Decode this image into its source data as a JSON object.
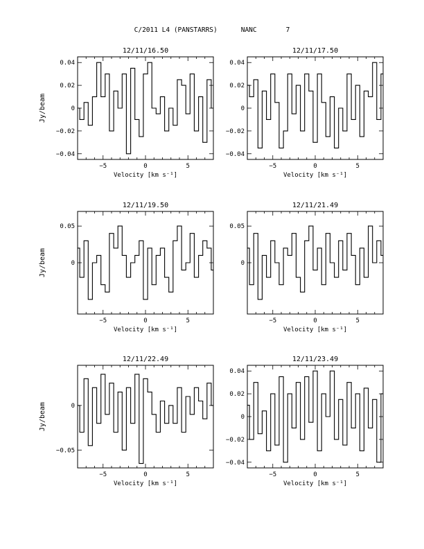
{
  "header": {
    "object": "C/2011 L4 (PANSTARRS)",
    "station": "NANC",
    "number": "7"
  },
  "chart_data": [
    {
      "type": "line",
      "title": "12/11/16.50",
      "xlabel": "Velocity [km s⁻¹]",
      "ylabel": "Jy/beam",
      "xlim": [
        -8,
        8
      ],
      "ylim": [
        -0.045,
        0.045
      ],
      "xticks": [
        -5,
        0,
        5
      ],
      "yticks": [
        -0.04,
        -0.02,
        0,
        0.02,
        0.04
      ],
      "ytick_labels": [
        "−0.04",
        "−0.02",
        "0",
        "0.02",
        "0.04"
      ],
      "x": [
        -8,
        -7.5,
        -7,
        -6.5,
        -6,
        -5.5,
        -5,
        -4.5,
        -4,
        -3.5,
        -3,
        -2.5,
        -2,
        -1.5,
        -1,
        -0.5,
        0,
        0.5,
        1,
        1.5,
        2,
        2.5,
        3,
        3.5,
        4,
        4.5,
        5,
        5.5,
        6,
        6.5,
        7,
        7.5,
        8
      ],
      "values": [
        0.0,
        -0.01,
        0.005,
        -0.015,
        0.01,
        0.04,
        0.01,
        0.03,
        -0.02,
        0.015,
        0.0,
        0.03,
        -0.04,
        0.035,
        -0.01,
        -0.025,
        0.03,
        0.04,
        0.0,
        -0.005,
        0.01,
        -0.02,
        0.0,
        -0.015,
        0.025,
        0.02,
        -0.005,
        0.03,
        -0.02,
        0.01,
        -0.03,
        0.025,
        0.0
      ]
    },
    {
      "type": "line",
      "title": "12/11/17.50",
      "xlabel": "Velocity [km s⁻¹]",
      "ylabel": "",
      "xlim": [
        -8,
        8
      ],
      "ylim": [
        -0.045,
        0.045
      ],
      "xticks": [
        -5,
        0,
        5
      ],
      "yticks": [
        -0.04,
        -0.02,
        0,
        0.02,
        0.04
      ],
      "ytick_labels": [
        "−0.04",
        "−0.02",
        "0",
        "0.02",
        "0.04"
      ],
      "x": [
        -8,
        -7.5,
        -7,
        -6.5,
        -6,
        -5.5,
        -5,
        -4.5,
        -4,
        -3.5,
        -3,
        -2.5,
        -2,
        -1.5,
        -1,
        -0.5,
        0,
        0.5,
        1,
        1.5,
        2,
        2.5,
        3,
        3.5,
        4,
        4.5,
        5,
        5.5,
        6,
        6.5,
        7,
        7.5,
        8
      ],
      "values": [
        0.02,
        0.01,
        0.025,
        -0.035,
        0.015,
        -0.01,
        0.03,
        0.005,
        -0.035,
        -0.02,
        0.03,
        -0.005,
        0.02,
        -0.02,
        0.03,
        0.015,
        -0.03,
        0.03,
        0.005,
        -0.025,
        0.01,
        -0.035,
        0.0,
        -0.02,
        0.03,
        -0.01,
        0.02,
        -0.025,
        0.015,
        0.01,
        0.04,
        -0.01,
        0.03
      ]
    },
    {
      "type": "line",
      "title": "12/11/19.50",
      "xlabel": "Velocity [km s⁻¹]",
      "ylabel": "Jy/beam",
      "xlim": [
        -8,
        8
      ],
      "ylim": [
        -0.07,
        0.07
      ],
      "xticks": [
        -5,
        0,
        5
      ],
      "yticks": [
        0,
        0.05
      ],
      "ytick_labels": [
        "0",
        "0.05"
      ],
      "x": [
        -8,
        -7.5,
        -7,
        -6.5,
        -6,
        -5.5,
        -5,
        -4.5,
        -4,
        -3.5,
        -3,
        -2.5,
        -2,
        -1.5,
        -1,
        -0.5,
        0,
        0.5,
        1,
        1.5,
        2,
        2.5,
        3,
        3.5,
        4,
        4.5,
        5,
        5.5,
        6,
        6.5,
        7,
        7.5,
        8
      ],
      "values": [
        0.02,
        -0.02,
        0.03,
        -0.05,
        0.0,
        0.01,
        -0.03,
        -0.04,
        0.04,
        0.02,
        0.05,
        0.01,
        -0.02,
        0.0,
        0.01,
        0.03,
        -0.05,
        0.02,
        -0.03,
        0.01,
        0.02,
        -0.02,
        -0.04,
        0.03,
        0.05,
        -0.01,
        0.0,
        0.04,
        -0.02,
        0.01,
        0.03,
        0.02,
        -0.01
      ]
    },
    {
      "type": "line",
      "title": "12/11/21.49",
      "xlabel": "Velocity [km s⁻¹]",
      "ylabel": "",
      "xlim": [
        -8,
        8
      ],
      "ylim": [
        -0.07,
        0.07
      ],
      "xticks": [
        -5,
        0,
        5
      ],
      "yticks": [
        0,
        0.05
      ],
      "ytick_labels": [
        "0",
        "0.05"
      ],
      "x": [
        -8,
        -7.5,
        -7,
        -6.5,
        -6,
        -5.5,
        -5,
        -4.5,
        -4,
        -3.5,
        -3,
        -2.5,
        -2,
        -1.5,
        -1,
        -0.5,
        0,
        0.5,
        1,
        1.5,
        2,
        2.5,
        3,
        3.5,
        4,
        4.5,
        5,
        5.5,
        6,
        6.5,
        7,
        7.5,
        8
      ],
      "values": [
        0.02,
        -0.03,
        0.04,
        -0.05,
        0.01,
        -0.02,
        0.03,
        0.0,
        -0.03,
        0.02,
        0.01,
        0.04,
        -0.02,
        -0.04,
        0.03,
        0.05,
        -0.01,
        0.02,
        -0.03,
        0.04,
        0.0,
        -0.02,
        0.03,
        -0.01,
        0.04,
        0.01,
        -0.03,
        0.02,
        -0.02,
        0.05,
        0.0,
        0.03,
        0.01
      ]
    },
    {
      "type": "line",
      "title": "12/11/22.49",
      "xlabel": "Velocity [km s⁻¹]",
      "ylabel": "Jy/beam",
      "xlim": [
        -8,
        8
      ],
      "ylim": [
        -0.07,
        0.045
      ],
      "xticks": [
        -5,
        0,
        5
      ],
      "yticks": [
        -0.05,
        0
      ],
      "ytick_labels": [
        "−0.05",
        "0"
      ],
      "x": [
        -8,
        -7.5,
        -7,
        -6.5,
        -6,
        -5.5,
        -5,
        -4.5,
        -4,
        -3.5,
        -3,
        -2.5,
        -2,
        -1.5,
        -1,
        -0.5,
        0,
        0.5,
        1,
        1.5,
        2,
        2.5,
        3,
        3.5,
        4,
        4.5,
        5,
        5.5,
        6,
        6.5,
        7,
        7.5,
        8
      ],
      "values": [
        0.0,
        -0.03,
        0.03,
        -0.045,
        0.02,
        -0.02,
        0.035,
        -0.01,
        0.025,
        -0.03,
        0.015,
        -0.05,
        0.02,
        -0.02,
        0.035,
        -0.065,
        0.03,
        0.015,
        -0.01,
        -0.03,
        0.005,
        -0.02,
        0.0,
        -0.02,
        0.02,
        -0.03,
        0.01,
        -0.01,
        0.02,
        0.005,
        -0.015,
        0.025,
        0.0
      ]
    },
    {
      "type": "line",
      "title": "12/11/23.49",
      "xlabel": "Velocity [km s⁻¹]",
      "ylabel": "",
      "xlim": [
        -8,
        8
      ],
      "ylim": [
        -0.045,
        0.045
      ],
      "xticks": [
        -5,
        0,
        5
      ],
      "yticks": [
        -0.04,
        -0.02,
        0,
        0.02,
        0.04
      ],
      "ytick_labels": [
        "−0.04",
        "−0.02",
        "0",
        "0.02",
        "0.04"
      ],
      "x": [
        -8,
        -7.5,
        -7,
        -6.5,
        -6,
        -5.5,
        -5,
        -4.5,
        -4,
        -3.5,
        -3,
        -2.5,
        -2,
        -1.5,
        -1,
        -0.5,
        0,
        0.5,
        1,
        1.5,
        2,
        2.5,
        3,
        3.5,
        4,
        4.5,
        5,
        5.5,
        6,
        6.5,
        7,
        7.5,
        8
      ],
      "values": [
        0.01,
        -0.02,
        0.03,
        -0.015,
        0.005,
        -0.03,
        0.02,
        -0.025,
        0.035,
        -0.04,
        0.02,
        -0.01,
        0.03,
        -0.02,
        0.035,
        -0.005,
        0.04,
        -0.03,
        0.02,
        0.0,
        0.04,
        -0.02,
        0.015,
        -0.025,
        0.03,
        -0.01,
        0.02,
        -0.03,
        0.025,
        -0.01,
        0.015,
        -0.04,
        0.02
      ]
    }
  ]
}
